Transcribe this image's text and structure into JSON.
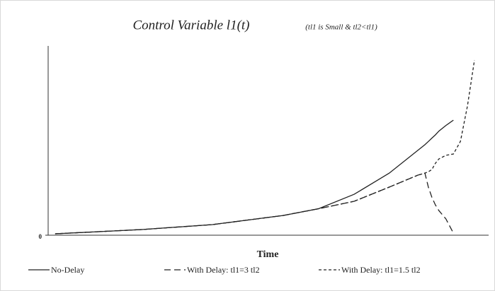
{
  "chart_data": {
    "type": "line",
    "title": "Control Variable l1(t)",
    "subtitle": "(tl1 is Small & tl2<tl1)",
    "x_label": "Time",
    "x": [
      1.6,
      21.3,
      37.4,
      53.5,
      61.6,
      69.7,
      77.7,
      84.2,
      85.8,
      86.6,
      87.4,
      88.2,
      89.0,
      90.6,
      92.3,
      93.9,
      95.5,
      97.1
    ],
    "xlim": [
      0,
      100
    ],
    "ylim": [
      0,
      100
    ],
    "yticks": [
      0
    ],
    "series": [
      {
        "name": "No-Delay",
        "color": "#222222",
        "dash": "solid",
        "values": [
          0.75,
          3,
          5.6,
          10.4,
          14,
          21.6,
          32.8,
          44.8,
          47.8,
          49.5,
          51.3,
          53,
          55,
          58,
          60.8,
          null,
          null,
          null
        ]
      },
      {
        "name": "With Delay: tl1=3 tl2",
        "color": "#222222",
        "dash": "long",
        "values": [
          0.75,
          3,
          5.6,
          10.4,
          14,
          17.9,
          25.4,
          31.7,
          32.8,
          25.4,
          20,
          16,
          13,
          8.6,
          1.1,
          null,
          null,
          null
        ]
      },
      {
        "name": "With Delay: tl1=1.5 tl2",
        "color": "#222222",
        "dash": "short",
        "values": [
          0.75,
          3,
          5.6,
          10.4,
          14,
          17.9,
          25.4,
          31.7,
          32.8,
          33.5,
          34.7,
          38,
          40.3,
          42.2,
          42.9,
          49.6,
          68.3,
          92.5
        ]
      }
    ]
  }
}
